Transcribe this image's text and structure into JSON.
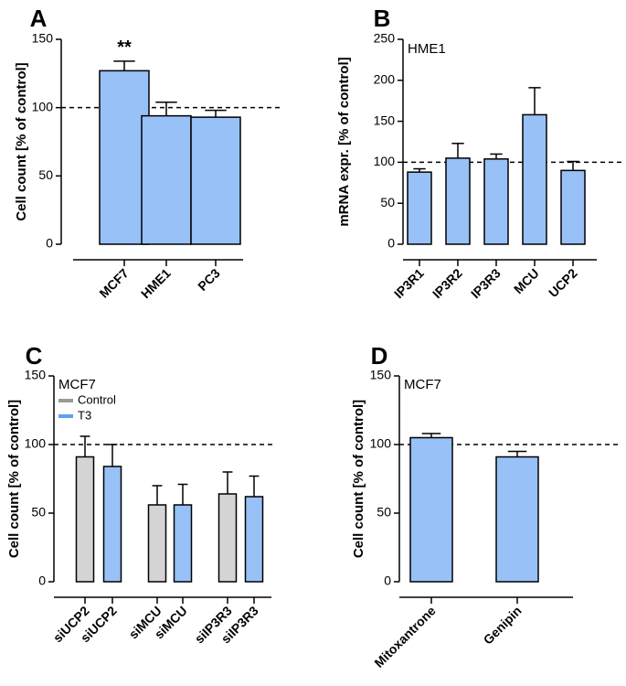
{
  "colors": {
    "blue": "#97c1f7",
    "gray": "#d4d4d4",
    "legend_gray": "#9a9a9a",
    "legend_blue": "#5aa2f0",
    "axis": "#000000"
  },
  "chart_data": [
    {
      "panel": "A",
      "type": "bar",
      "subtitle": "",
      "ylabel": "Cell count [% of control]",
      "ylim": [
        0,
        150
      ],
      "yticks": [
        0,
        50,
        100,
        150
      ],
      "reference_line": 100,
      "categories": [
        "MCF7",
        "HME1",
        "PC3"
      ],
      "series": [
        {
          "name": "",
          "values": [
            127,
            94,
            93
          ],
          "errors": [
            7,
            10,
            5
          ],
          "color": "blue"
        }
      ],
      "annotations": [
        {
          "category": "MCF7",
          "text": "**"
        }
      ]
    },
    {
      "panel": "B",
      "type": "bar",
      "subtitle": "HME1",
      "ylabel": "mRNA expr. [% of control]",
      "ylim": [
        0,
        250
      ],
      "yticks": [
        0,
        50,
        100,
        150,
        200,
        250
      ],
      "reference_line": 100,
      "categories": [
        "IP3R1",
        "IP3R2",
        "IP3R3",
        "MCU",
        "UCP2"
      ],
      "series": [
        {
          "name": "",
          "values": [
            88,
            105,
            104,
            158,
            90
          ],
          "errors": [
            4,
            18,
            6,
            33,
            11
          ],
          "color": "blue"
        }
      ],
      "annotations": []
    },
    {
      "panel": "C",
      "type": "bar",
      "subtitle": "MCF7",
      "ylabel": "Cell count [% of control]",
      "ylim": [
        0,
        150
      ],
      "yticks": [
        0,
        50,
        100,
        150
      ],
      "reference_line": 100,
      "categories": [
        "siUCP2",
        "siUCP2",
        "siMCU",
        "siMCU",
        "siIP3R3",
        "siIP3R3"
      ],
      "series": [
        {
          "name": "",
          "values": [
            91,
            84,
            56,
            56,
            64,
            62
          ],
          "errors": [
            15,
            16,
            14,
            15,
            16,
            15
          ],
          "bar_colors": [
            "gray",
            "blue",
            "gray",
            "blue",
            "gray",
            "blue"
          ]
        }
      ],
      "legend": {
        "position": "top-left",
        "entries": [
          {
            "label": "Control",
            "color": "legend_gray"
          },
          {
            "label": "T3",
            "color": "legend_blue"
          }
        ]
      },
      "annotations": []
    },
    {
      "panel": "D",
      "type": "bar",
      "subtitle": "MCF7",
      "ylabel": "Cell count [% of control]",
      "ylim": [
        0,
        150
      ],
      "yticks": [
        0,
        50,
        100,
        150
      ],
      "reference_line": 100,
      "categories": [
        "Mitoxantrone",
        "Genipin"
      ],
      "series": [
        {
          "name": "",
          "values": [
            105,
            91
          ],
          "errors": [
            3,
            4
          ],
          "color": "blue"
        }
      ],
      "annotations": []
    }
  ]
}
